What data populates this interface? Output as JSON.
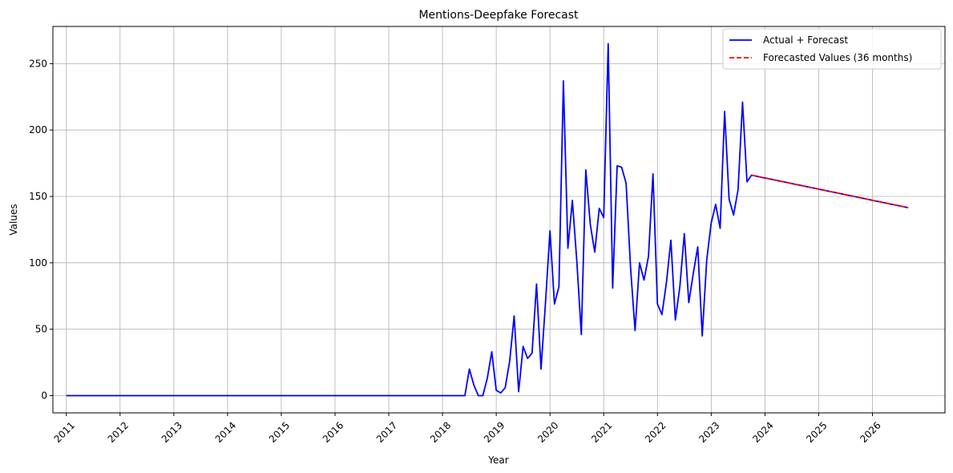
{
  "chart_data": {
    "type": "line",
    "title": "Mentions-Deepfake Forecast",
    "xlabel": "Year",
    "ylabel": "Values",
    "xlim": [
      2010.75,
      2027.35
    ],
    "ylim": [
      -13,
      278
    ],
    "x_ticks": [
      2011,
      2012,
      2013,
      2014,
      2015,
      2016,
      2017,
      2018,
      2019,
      2020,
      2021,
      2022,
      2023,
      2024,
      2025,
      2026
    ],
    "x_tick_labels": [
      "2011",
      "2012",
      "2013",
      "2014",
      "2015",
      "2016",
      "2017",
      "2018",
      "2019",
      "2020",
      "2021",
      "2022",
      "2023",
      "2024",
      "2025",
      "2026"
    ],
    "y_ticks": [
      0,
      50,
      100,
      150,
      200,
      250
    ],
    "y_tick_labels": [
      "0",
      "50",
      "100",
      "150",
      "200",
      "250"
    ],
    "grid": true,
    "legend_position": "top-right",
    "series": [
      {
        "name": "Actual + Forecast",
        "color": "#0000ff",
        "style": "solid",
        "actual_start": 2011.0,
        "actual_step": 0.08333,
        "actual_values": [
          0,
          0,
          0,
          0,
          0,
          0,
          0,
          0,
          0,
          0,
          0,
          0,
          0,
          0,
          0,
          0,
          0,
          0,
          0,
          0,
          0,
          0,
          0,
          0,
          0,
          0,
          0,
          0,
          0,
          0,
          0,
          0,
          0,
          0,
          0,
          0,
          0,
          0,
          0,
          0,
          0,
          0,
          0,
          0,
          0,
          0,
          0,
          0,
          0,
          0,
          0,
          0,
          0,
          0,
          0,
          0,
          0,
          0,
          0,
          0,
          0,
          0,
          0,
          0,
          0,
          0,
          0,
          0,
          0,
          0,
          0,
          0,
          0,
          0,
          0,
          0,
          0,
          0,
          0,
          0,
          0,
          0,
          0,
          0,
          0,
          0,
          0,
          0,
          0,
          0,
          20,
          8,
          0,
          0,
          13,
          33,
          4,
          2,
          6,
          26,
          60,
          3,
          37,
          28,
          32,
          84,
          20,
          70,
          124,
          69,
          82,
          237,
          111,
          147,
          101,
          46,
          170,
          129,
          108,
          141,
          134,
          265,
          81,
          173,
          172,
          160,
          96,
          49,
          100,
          87,
          105,
          167,
          69,
          61,
          85,
          117,
          57,
          82,
          122,
          70,
          92,
          112,
          45,
          102,
          130,
          144,
          126,
          214,
          148,
          136,
          155,
          221,
          161,
          166
        ],
        "forecast_start": 2023.75,
        "forecast_step": 0.08333,
        "forecast_values": [
          166,
          165.3,
          164.6,
          163.9,
          163.2,
          162.5,
          161.8,
          161.1,
          160.4,
          159.7,
          159.0,
          158.3,
          157.6,
          156.9,
          156.2,
          155.5,
          154.8,
          154.1,
          153.4,
          152.7,
          152.0,
          151.3,
          150.6,
          149.9,
          149.2,
          148.5,
          147.8,
          147.1,
          146.4,
          145.7,
          145.0,
          144.3,
          143.6,
          142.9,
          142.2,
          141.5
        ]
      },
      {
        "name": "Forecasted Values (36 months)",
        "color": "#ff0000",
        "style": "dashed",
        "start": 2023.75,
        "step": 0.08333,
        "values": [
          166,
          165.3,
          164.6,
          163.9,
          163.2,
          162.5,
          161.8,
          161.1,
          160.4,
          159.7,
          159.0,
          158.3,
          157.6,
          156.9,
          156.2,
          155.5,
          154.8,
          154.1,
          153.4,
          152.7,
          152.0,
          151.3,
          150.6,
          149.9,
          149.2,
          148.5,
          147.8,
          147.1,
          146.4,
          145.7,
          145.0,
          144.3,
          143.6,
          142.9,
          142.2,
          141.5
        ]
      }
    ]
  }
}
